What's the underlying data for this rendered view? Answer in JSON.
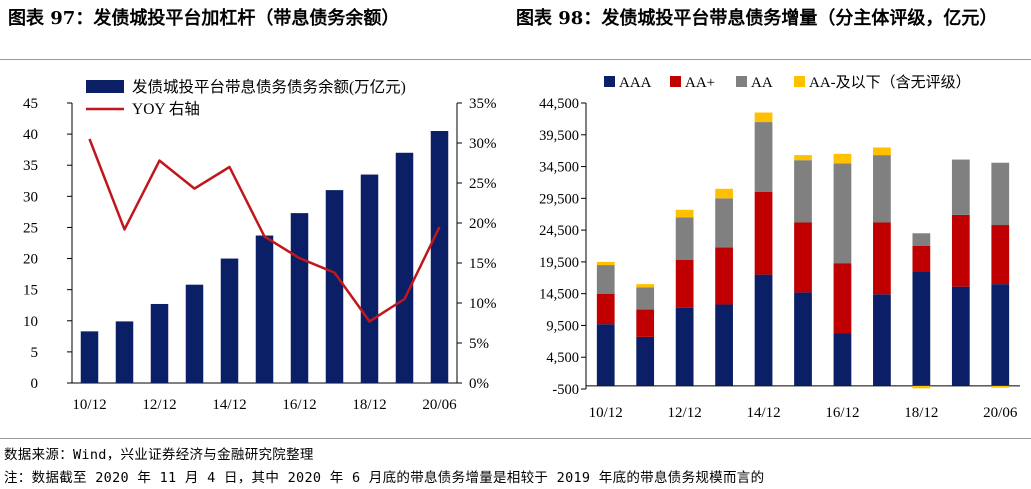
{
  "figure1": {
    "title": "图表 97：发债城投平台加杠杆（带息债务余额）",
    "chart_data": {
      "type": "bar",
      "categories": [
        "10/12",
        "11/12",
        "12/12",
        "13/12",
        "14/12",
        "15/12",
        "16/12",
        "17/12",
        "18/12",
        "19/12",
        "20/06"
      ],
      "x_tick_labels": [
        "10/12",
        "12/12",
        "14/12",
        "16/12",
        "18/12",
        "20/06"
      ],
      "series": [
        {
          "name": "发债城投平台带息债务债务余额(万亿元)",
          "type": "bar",
          "axis": "left",
          "color": "#0b1f66",
          "values": [
            8.3,
            9.9,
            12.7,
            15.8,
            20.0,
            23.7,
            27.3,
            31.0,
            33.5,
            37.0,
            40.5
          ]
        },
        {
          "name": "YOY 右轴",
          "type": "line",
          "axis": "right",
          "color": "#c0171c",
          "values": [
            30.5,
            19.2,
            27.8,
            24.3,
            27.0,
            18.3,
            15.6,
            13.8,
            7.7,
            10.5,
            19.5
          ]
        }
      ],
      "ylim_left": [
        0,
        45
      ],
      "yticks_left": [
        "0",
        "5",
        "10",
        "15",
        "20",
        "25",
        "30",
        "35",
        "40",
        "45"
      ],
      "ylim_right": [
        0,
        35
      ],
      "yticks_right": [
        "0%",
        "5%",
        "10%",
        "15%",
        "20%",
        "25%",
        "30%",
        "35%"
      ],
      "legend": "top-left",
      "grid": false
    }
  },
  "figure2": {
    "title": "图表 98：发债城投平台带息债务增量（分主体评级，亿元）",
    "chart_data": {
      "type": "bar",
      "stacked": true,
      "categories": [
        "10/12",
        "11/12",
        "12/12",
        "13/12",
        "14/12",
        "15/12",
        "16/12",
        "17/12",
        "18/12",
        "19/12",
        "20/06"
      ],
      "x_tick_labels": [
        "10/12",
        "12/12",
        "14/12",
        "16/12",
        "18/12",
        "20/06"
      ],
      "series": [
        {
          "name": "AAA",
          "color": "#0b1f66",
          "values": [
            9700,
            7700,
            12300,
            12800,
            17500,
            14700,
            8300,
            14400,
            18000,
            15600,
            16000
          ]
        },
        {
          "name": "AA+",
          "color": "#c00000",
          "values": [
            4800,
            4300,
            7500,
            9000,
            13000,
            11000,
            11000,
            11300,
            4000,
            11300,
            9300
          ]
        },
        {
          "name": "AA",
          "color": "#808080",
          "values": [
            4500,
            3500,
            6700,
            7700,
            11000,
            9800,
            15700,
            10600,
            2000,
            8700,
            9800
          ]
        },
        {
          "name": "AA-及以下（含无评级）",
          "color": "#ffc000",
          "values": [
            500,
            500,
            1200,
            1500,
            1500,
            800,
            1500,
            1200,
            -400,
            0,
            -300
          ]
        }
      ],
      "ylim": [
        -500,
        44500
      ],
      "yticks": [
        "-500",
        "4,500",
        "9,500",
        "14,500",
        "19,500",
        "24,500",
        "29,500",
        "34,500",
        "39,500",
        "44,500"
      ],
      "legend": "top",
      "grid": false
    }
  },
  "footer": {
    "source": "数据来源：Wind，兴业证券经济与金融研究院整理",
    "note": "注：数据截至 2020 年 11 月 4 日，其中 2020 年 6 月底的带息债务增量是相较于 2019 年底的带息债务规模而言的"
  }
}
